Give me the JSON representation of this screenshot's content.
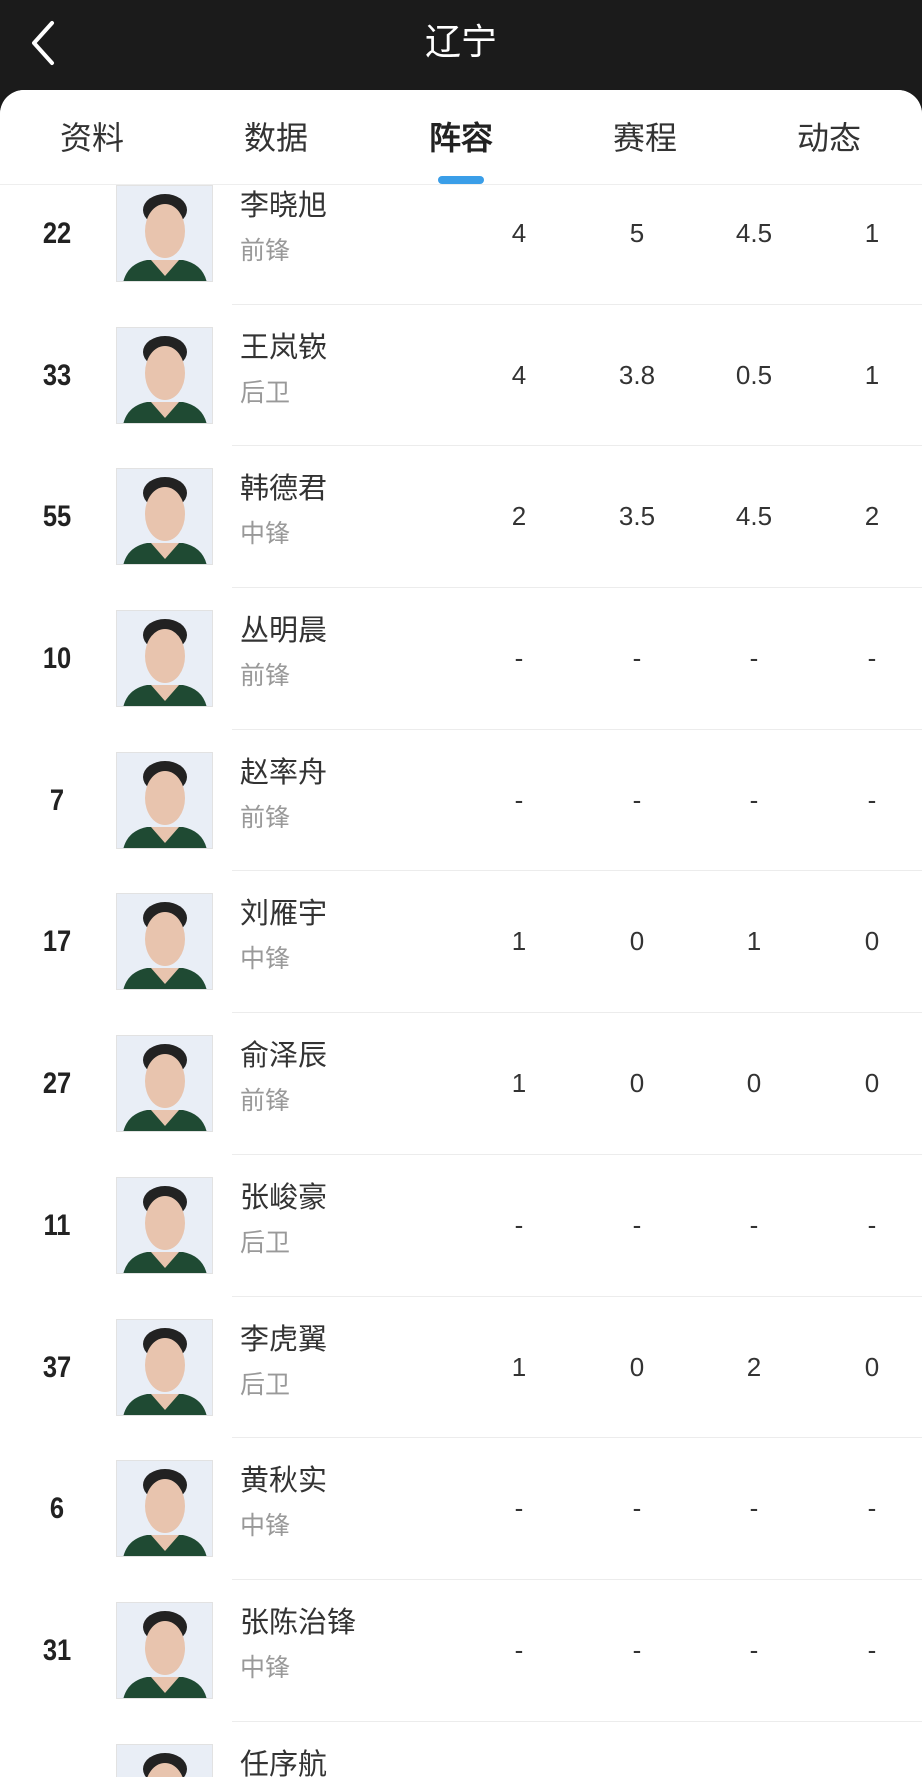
{
  "header": {
    "title": "辽宁",
    "back_icon": "chevron-left-icon"
  },
  "tabs": [
    {
      "label": "资料"
    },
    {
      "label": "数据"
    },
    {
      "label": "阵容",
      "active": true
    },
    {
      "label": "赛程"
    },
    {
      "label": "动态"
    }
  ],
  "accent_color": "#3a9ee8",
  "players": [
    {
      "number": "22",
      "name": "李晓旭",
      "position": "前锋",
      "stats": [
        "4",
        "5",
        "4.5",
        "1"
      ]
    },
    {
      "number": "33",
      "name": "王岚嵚",
      "position": "后卫",
      "stats": [
        "4",
        "3.8",
        "0.5",
        "1"
      ]
    },
    {
      "number": "55",
      "name": "韩德君",
      "position": "中锋",
      "stats": [
        "2",
        "3.5",
        "4.5",
        "2"
      ]
    },
    {
      "number": "10",
      "name": "丛明晨",
      "position": "前锋",
      "stats": [
        "-",
        "-",
        "-",
        "-"
      ]
    },
    {
      "number": "7",
      "name": "赵率舟",
      "position": "前锋",
      "stats": [
        "-",
        "-",
        "-",
        "-"
      ]
    },
    {
      "number": "17",
      "name": "刘雁宇",
      "position": "中锋",
      "stats": [
        "1",
        "0",
        "1",
        "0"
      ]
    },
    {
      "number": "27",
      "name": "俞泽辰",
      "position": "前锋",
      "stats": [
        "1",
        "0",
        "0",
        "0"
      ]
    },
    {
      "number": "11",
      "name": "张峻豪",
      "position": "后卫",
      "stats": [
        "-",
        "-",
        "-",
        "-"
      ]
    },
    {
      "number": "37",
      "name": "李虎翼",
      "position": "后卫",
      "stats": [
        "1",
        "0",
        "2",
        "0"
      ]
    },
    {
      "number": "6",
      "name": "黄秋实",
      "position": "中锋",
      "stats": [
        "-",
        "-",
        "-",
        "-"
      ]
    },
    {
      "number": "31",
      "name": "张陈治锋",
      "position": "中锋",
      "stats": [
        "-",
        "-",
        "-",
        "-"
      ]
    },
    {
      "number": "",
      "name": "任序航",
      "position": "",
      "stats": [
        "",
        "",
        "",
        ""
      ]
    }
  ]
}
